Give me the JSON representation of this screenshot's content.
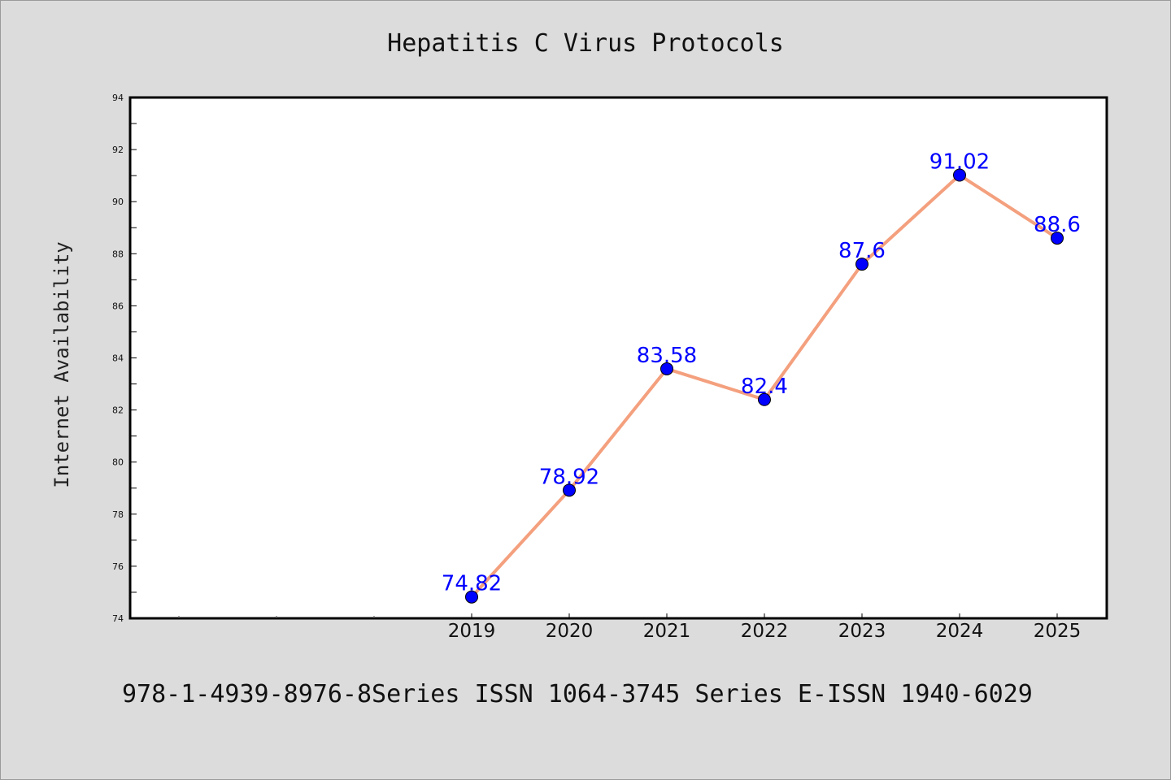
{
  "chart_data": {
    "type": "line",
    "title": "Hepatitis C Virus Protocols",
    "xlabel": "",
    "ylabel": "Internet Availability",
    "categories": [
      "2019",
      "2020",
      "2021",
      "2022",
      "2023",
      "2024",
      "2025"
    ],
    "series": [
      {
        "values": [
          74.82,
          78.92,
          83.58,
          82.4,
          87.6,
          91.02,
          88.6
        ]
      }
    ],
    "data_labels": [
      "74.82",
      "78.92",
      "83.58",
      "82.4",
      "87.6",
      "91.02",
      "88.6"
    ],
    "ylim": [
      74,
      94
    ],
    "yticks": [
      "74",
      "76",
      "78",
      "80",
      "82",
      "84",
      "86",
      "88",
      "90",
      "92",
      "94"
    ],
    "grid": false,
    "legend": "none",
    "footer": "978-1-4939-8976-8Series ISSN 1064-3745 Series E-ISSN 1940-6029",
    "colors": {
      "line": "#f4a07e",
      "marker": "#0000ff",
      "label": "#0000ff",
      "background": "#dcdcdc",
      "plot_bg": "#ffffff",
      "axis": "#000000"
    }
  }
}
